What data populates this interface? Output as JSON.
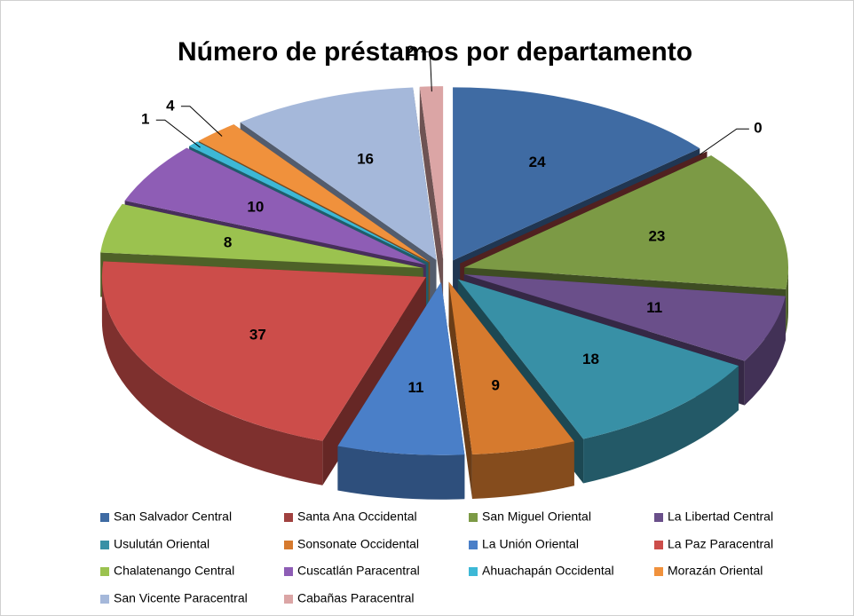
{
  "chart_data": {
    "type": "pie",
    "title": "Número de préstamos por departamento",
    "categories": [
      "San Salvador Central",
      "Santa Ana Occidental",
      "San Miguel Oriental",
      "La Libertad Central",
      "Usulután Oriental",
      "Sonsonate Occidental",
      "La Unión Oriental",
      "La Paz Paracentral",
      "Chalatenango Central",
      "Cuscatlán Paracentral",
      "Ahuachapán Occidental",
      "Morazán Oriental",
      "San Vicente Paracentral",
      "Cabañas Paracentral"
    ],
    "values": [
      24,
      0,
      23,
      11,
      18,
      9,
      11,
      37,
      8,
      10,
      1,
      4,
      16,
      2
    ],
    "colors": [
      "#3F6BA3",
      "#A0413F",
      "#7C9A45",
      "#6A4F8A",
      "#3890A6",
      "#D67A2E",
      "#4A7FC8",
      "#CC4D4A",
      "#9BC24F",
      "#8E5DB5",
      "#3DB8D6",
      "#F0913C",
      "#A5B8DA",
      "#DBA5A5"
    ],
    "legend": "bottom"
  }
}
